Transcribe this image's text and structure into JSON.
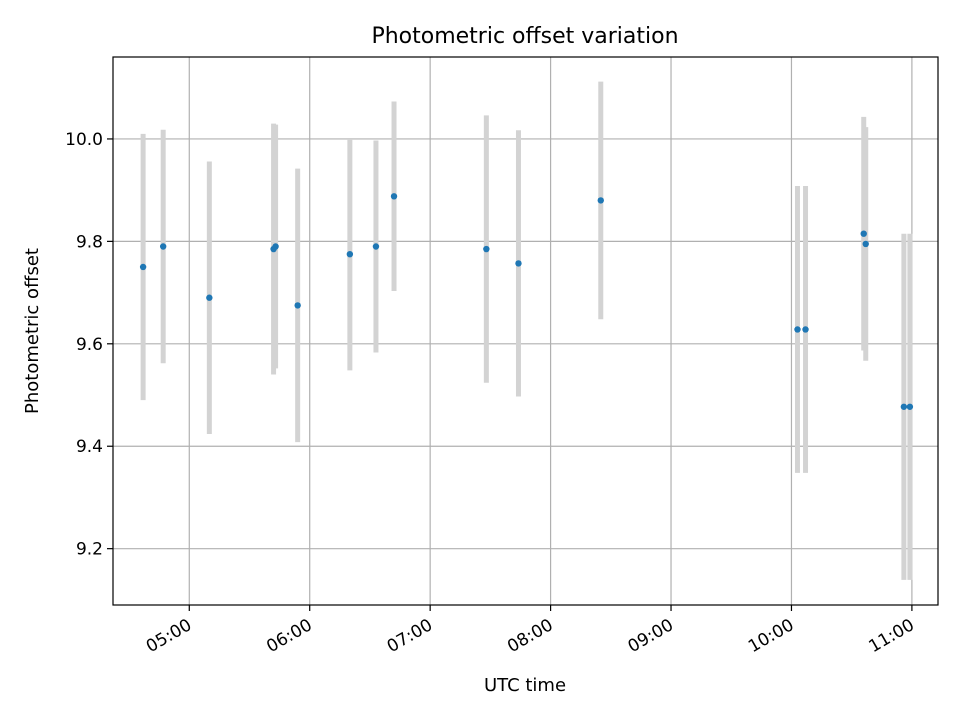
{
  "chart_data": {
    "type": "scatter",
    "title": "Photometric offset variation",
    "xlabel": "UTC time",
    "ylabel": "Photometric offset",
    "grid": true,
    "x_format": "HH:MM",
    "xlim": [
      "04:22",
      "11:13"
    ],
    "ylim": [
      9.09,
      10.16
    ],
    "x_ticks": [
      "05:00",
      "06:00",
      "07:00",
      "08:00",
      "09:00",
      "10:00",
      "11:00"
    ],
    "y_ticks": [
      "9.2",
      "9.4",
      "9.6",
      "9.8",
      "10.0"
    ],
    "colors": {
      "points": "#1f77b4",
      "errorbars": "#d3d3d3",
      "grid": "#b0b0b0"
    },
    "series": [
      {
        "points": [
          {
            "x": "04:37",
            "y": 9.75,
            "low": 9.49,
            "high": 10.01
          },
          {
            "x": "04:47",
            "y": 9.79,
            "low": 9.562,
            "high": 10.018
          },
          {
            "x": "05:10",
            "y": 9.69,
            "low": 9.424,
            "high": 9.956
          },
          {
            "x": "05:42",
            "y": 9.785,
            "low": 9.54,
            "high": 10.03
          },
          {
            "x": "05:43",
            "y": 9.79,
            "low": 9.552,
            "high": 10.028
          },
          {
            "x": "05:54",
            "y": 9.675,
            "low": 9.408,
            "high": 9.942
          },
          {
            "x": "06:20",
            "y": 9.775,
            "low": 9.548,
            "high": 10.0
          },
          {
            "x": "06:33",
            "y": 9.79,
            "low": 9.583,
            "high": 9.997
          },
          {
            "x": "06:42",
            "y": 9.888,
            "low": 9.703,
            "high": 10.073
          },
          {
            "x": "07:28",
            "y": 9.785,
            "low": 9.524,
            "high": 10.046
          },
          {
            "x": "07:44",
            "y": 9.757,
            "low": 9.497,
            "high": 10.017
          },
          {
            "x": "08:25",
            "y": 9.88,
            "low": 9.648,
            "high": 10.112
          },
          {
            "x": "10:03",
            "y": 9.628,
            "low": 9.348,
            "high": 9.908
          },
          {
            "x": "10:07",
            "y": 9.628,
            "low": 9.348,
            "high": 9.908
          },
          {
            "x": "10:36",
            "y": 9.815,
            "low": 9.587,
            "high": 10.043
          },
          {
            "x": "10:37",
            "y": 9.795,
            "low": 9.567,
            "high": 10.023
          },
          {
            "x": "10:56",
            "y": 9.477,
            "low": 9.139,
            "high": 9.815
          },
          {
            "x": "10:59",
            "y": 9.477,
            "low": 9.139,
            "high": 9.815
          }
        ]
      }
    ]
  }
}
